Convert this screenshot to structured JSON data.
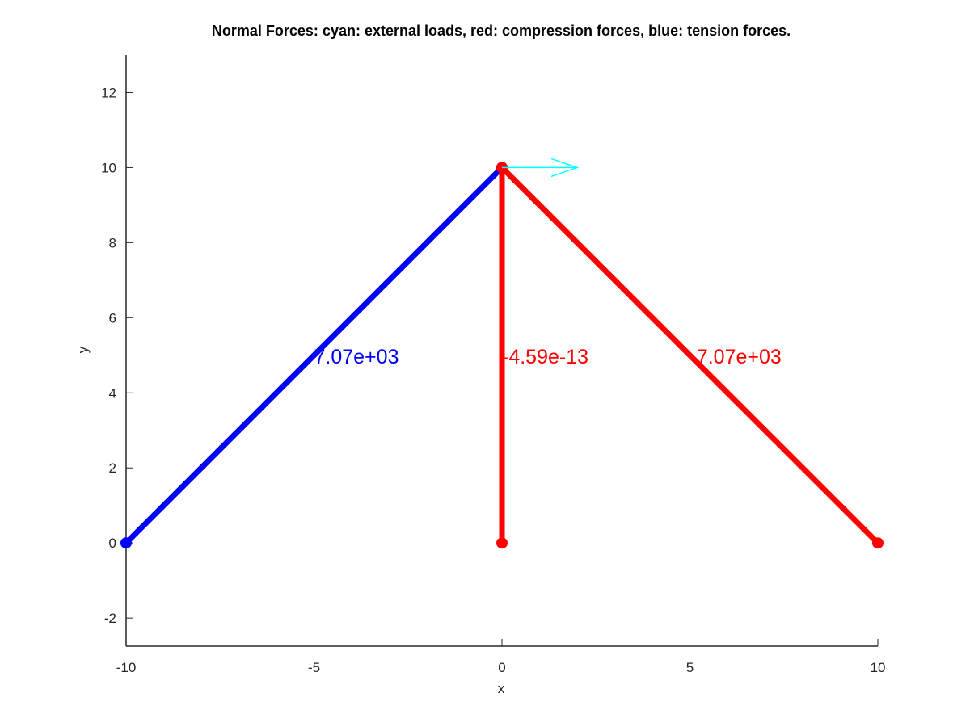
{
  "chart_data": {
    "type": "line",
    "title": "Normal Forces: cyan: external loads, red: compression forces, blue: tension forces.",
    "xlabel": "x",
    "ylabel": "y",
    "xlim": [
      -10,
      10
    ],
    "ylim": [
      -2.75,
      13
    ],
    "x_ticks": [
      -10,
      -5,
      0,
      5,
      10
    ],
    "y_ticks": [
      -2,
      0,
      2,
      4,
      6,
      8,
      10,
      12
    ],
    "grid": false,
    "colors": {
      "tension": "#0000ff",
      "compression": "#ff0000",
      "load": "#00ffff"
    },
    "members": [
      {
        "from": [
          -10,
          0
        ],
        "to": [
          0,
          10
        ],
        "force_label": "7.07e+03",
        "color": "#0000ff",
        "label_at": [
          -5,
          5
        ]
      },
      {
        "from": [
          0,
          0
        ],
        "to": [
          0,
          10
        ],
        "force_label": "-4.59e-13",
        "color": "#ff0000",
        "label_at": [
          0,
          5
        ]
      },
      {
        "from": [
          10,
          0
        ],
        "to": [
          0,
          10
        ],
        "force_label": "-7.07e+03",
        "color": "#ff0000",
        "label_at": [
          5,
          5
        ]
      }
    ],
    "loads": [
      {
        "at": [
          0,
          10
        ],
        "vector": [
          2,
          0
        ],
        "color": "#00ffff"
      }
    ]
  }
}
